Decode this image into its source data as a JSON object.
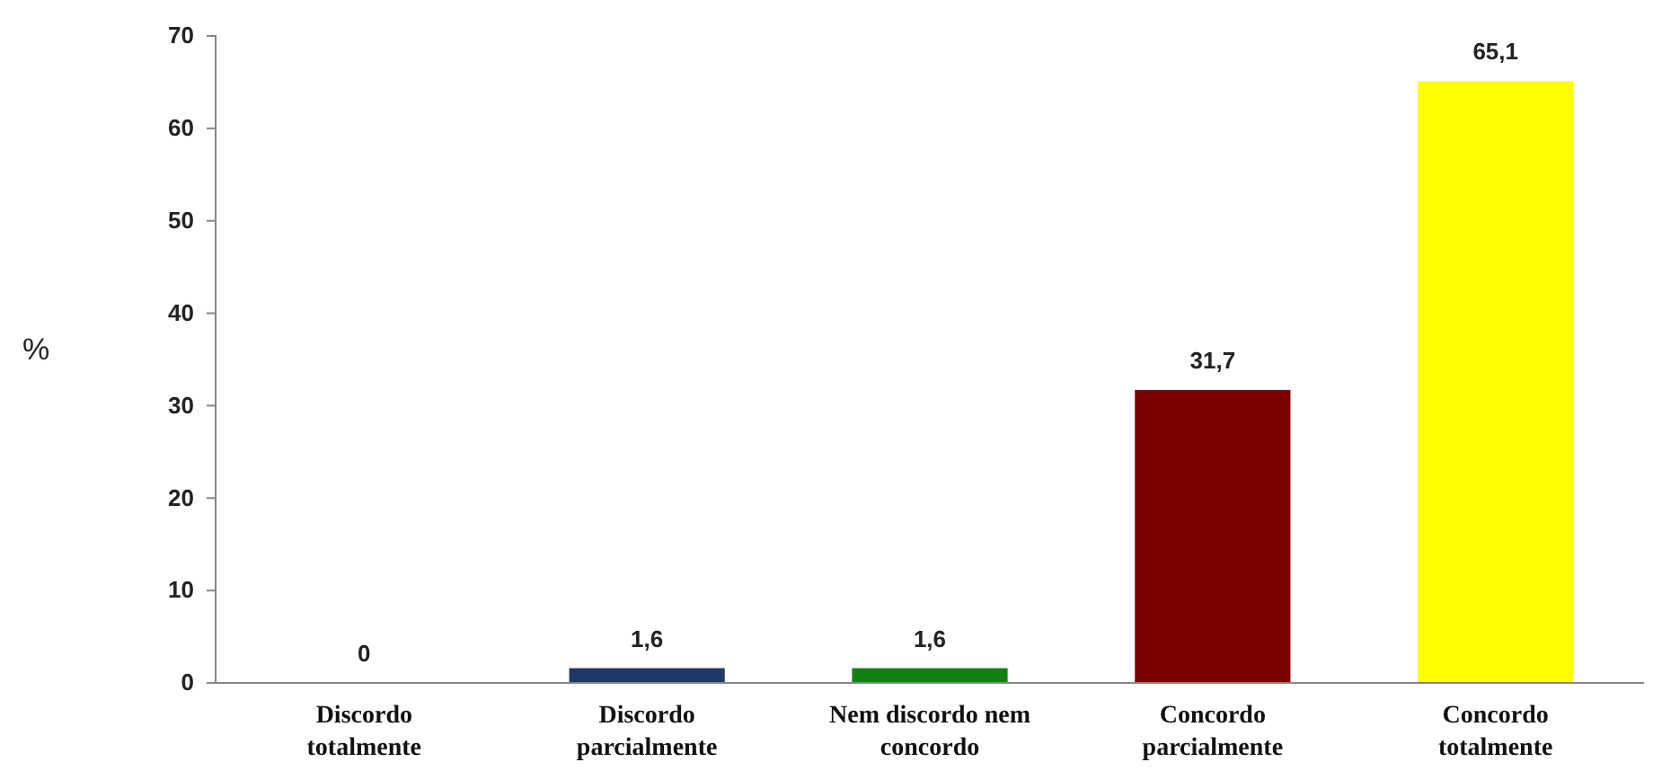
{
  "chart_data": {
    "type": "bar",
    "ylabel": "%",
    "categories": [
      "Discordo totalmente",
      "Discordo parcialmente",
      "Nem discordo nem concordo",
      "Concordo parcialmente",
      "Concordo totalmente"
    ],
    "values": [
      0,
      1.6,
      1.6,
      31.7,
      65.1
    ],
    "colors": [
      "#1f3864",
      "#1f3864",
      "#138013",
      "#7b0000",
      "#ffff00"
    ],
    "value_labels": [
      "0",
      "1,6",
      "1,6",
      "31,7",
      "65,1"
    ],
    "ylim": [
      0,
      70
    ],
    "yticks": [
      0,
      10,
      20,
      30,
      40,
      50,
      60,
      70
    ],
    "grid": false
  }
}
